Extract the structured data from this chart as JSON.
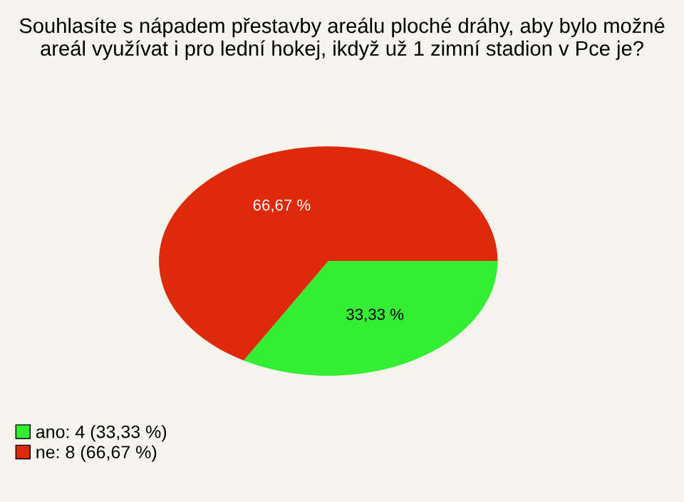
{
  "chart_data": {
    "type": "pie",
    "title": "Souhlasíte s nápadem přestavby areálu ploché dráhy, aby bylo možné areál využívat i pro lední hokej, ikdyž už 1 zimní stadion v Pce je?",
    "categories": [
      "ano: 4 (33,33 %)",
      "ne: 8 (66,67 %)"
    ],
    "values": [
      33.33,
      66.67
    ],
    "value_labels": [
      "33,33 %",
      "66,67 %"
    ],
    "colors": [
      "#33ee33",
      "#dd2a0a"
    ],
    "legend": "bottom left"
  }
}
